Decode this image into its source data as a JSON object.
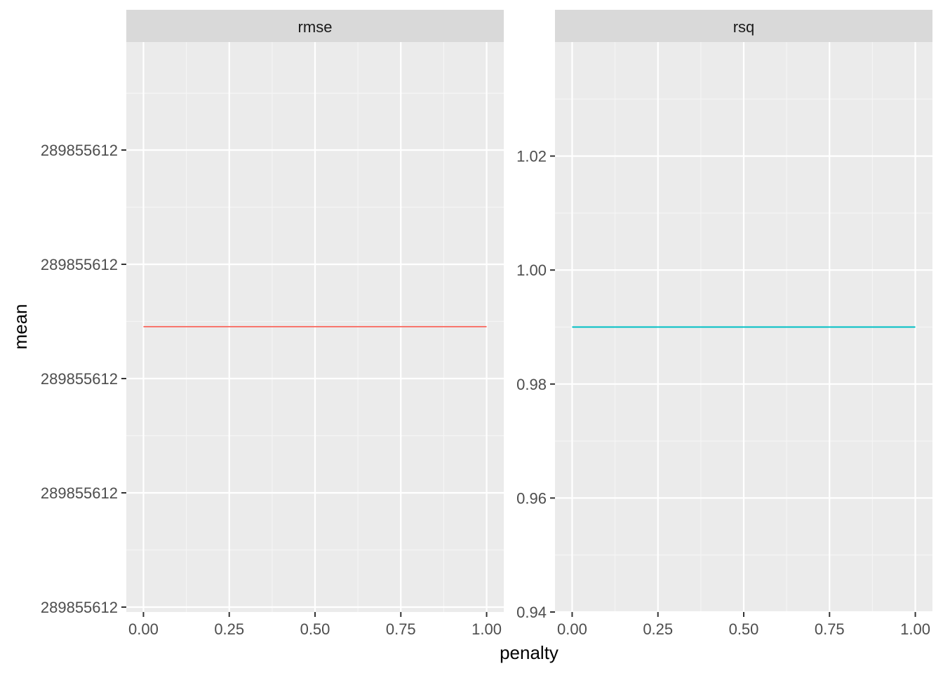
{
  "chart_data": {
    "type": "line",
    "xlabel": "penalty",
    "ylabel": "mean",
    "panels": [
      {
        "strip": "rmse",
        "color": "#F8766D",
        "x_ticks": [
          "0.00",
          "0.25",
          "0.50",
          "0.75",
          "1.00"
        ],
        "y_ticks": [
          "289855612",
          "289855612",
          "289855612",
          "289855612",
          "289855612"
        ],
        "series": [
          {
            "x": [
              0.0,
              1.0
            ],
            "y": [
              289855612,
              289855612
            ]
          }
        ]
      },
      {
        "strip": "rsq",
        "color": "#00BFC4",
        "x_ticks": [
          "0.00",
          "0.25",
          "0.50",
          "0.75",
          "1.00"
        ],
        "y_ticks": [
          "0.94",
          "0.96",
          "0.98",
          "1.00",
          "1.02"
        ],
        "ylim": [
          0.94,
          1.04
        ],
        "series": [
          {
            "x": [
              0.0,
              1.0
            ],
            "y": [
              0.99,
              0.99
            ]
          }
        ]
      }
    ]
  }
}
